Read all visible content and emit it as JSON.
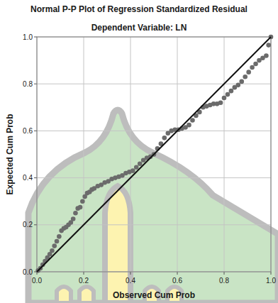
{
  "chart_data": {
    "type": "scatter",
    "title": "Normal P-P Plot of Regression Standardized Residual",
    "subtitle": "Dependent Variable: LN",
    "x_label": "Observed Cum Prob",
    "y_label": "Expected Cum Prob",
    "xlim": [
      0,
      1
    ],
    "ylim": [
      0,
      1
    ],
    "xticks": [
      {
        "value": 0,
        "label": "0.0"
      },
      {
        "value": 0.2,
        "label": "0.2"
      },
      {
        "value": 0.4,
        "label": "0.4"
      },
      {
        "value": 0.6,
        "label": "0.6"
      },
      {
        "value": 0.8,
        "label": "0.8"
      },
      {
        "value": 1,
        "label": "1.0"
      }
    ],
    "yticks": [
      {
        "value": 0,
        "label": "0.0"
      },
      {
        "value": 0.2,
        "label": "0.2"
      },
      {
        "value": 0.4,
        "label": "0.4"
      },
      {
        "value": 0.6,
        "label": "0.6"
      },
      {
        "value": 0.8,
        "label": "0.8"
      },
      {
        "value": 1,
        "label": "1.0"
      }
    ],
    "grid": true,
    "color": "#6b6b6b",
    "marker": "circle",
    "x": [
      0.005,
      0.015,
      0.025,
      0.035,
      0.045,
      0.055,
      0.065,
      0.075,
      0.085,
      0.095,
      0.105,
      0.115,
      0.125,
      0.135,
      0.145,
      0.155,
      0.165,
      0.175,
      0.185,
      0.195,
      0.205,
      0.215,
      0.225,
      0.235,
      0.245,
      0.26,
      0.275,
      0.29,
      0.305,
      0.32,
      0.335,
      0.35,
      0.365,
      0.38,
      0.395,
      0.41,
      0.425,
      0.44,
      0.455,
      0.47,
      0.485,
      0.5,
      0.515,
      0.53,
      0.545,
      0.56,
      0.575,
      0.59,
      0.605,
      0.62,
      0.635,
      0.65,
      0.665,
      0.68,
      0.695,
      0.71,
      0.725,
      0.74,
      0.755,
      0.77,
      0.785,
      0.8,
      0.815,
      0.83,
      0.845,
      0.86,
      0.875,
      0.89,
      0.905,
      0.92,
      0.935,
      0.95,
      0.965,
      0.98,
      0.99,
      1.0
    ],
    "values": [
      0.005,
      0.015,
      0.03,
      0.045,
      0.06,
      0.075,
      0.09,
      0.11,
      0.13,
      0.15,
      0.175,
      0.185,
      0.19,
      0.2,
      0.21,
      0.225,
      0.25,
      0.27,
      0.275,
      0.3,
      0.32,
      0.335,
      0.34,
      0.35,
      0.355,
      0.365,
      0.37,
      0.38,
      0.385,
      0.395,
      0.4,
      0.405,
      0.41,
      0.42,
      0.425,
      0.43,
      0.445,
      0.46,
      0.475,
      0.485,
      0.49,
      0.5,
      0.525,
      0.545,
      0.57,
      0.59,
      0.6,
      0.605,
      0.605,
      0.61,
      0.615,
      0.625,
      0.645,
      0.665,
      0.68,
      0.7,
      0.705,
      0.71,
      0.715,
      0.715,
      0.72,
      0.74,
      0.755,
      0.77,
      0.785,
      0.795,
      0.81,
      0.83,
      0.85,
      0.87,
      0.885,
      0.9,
      0.91,
      0.92,
      0.965,
      1.0
    ]
  }
}
